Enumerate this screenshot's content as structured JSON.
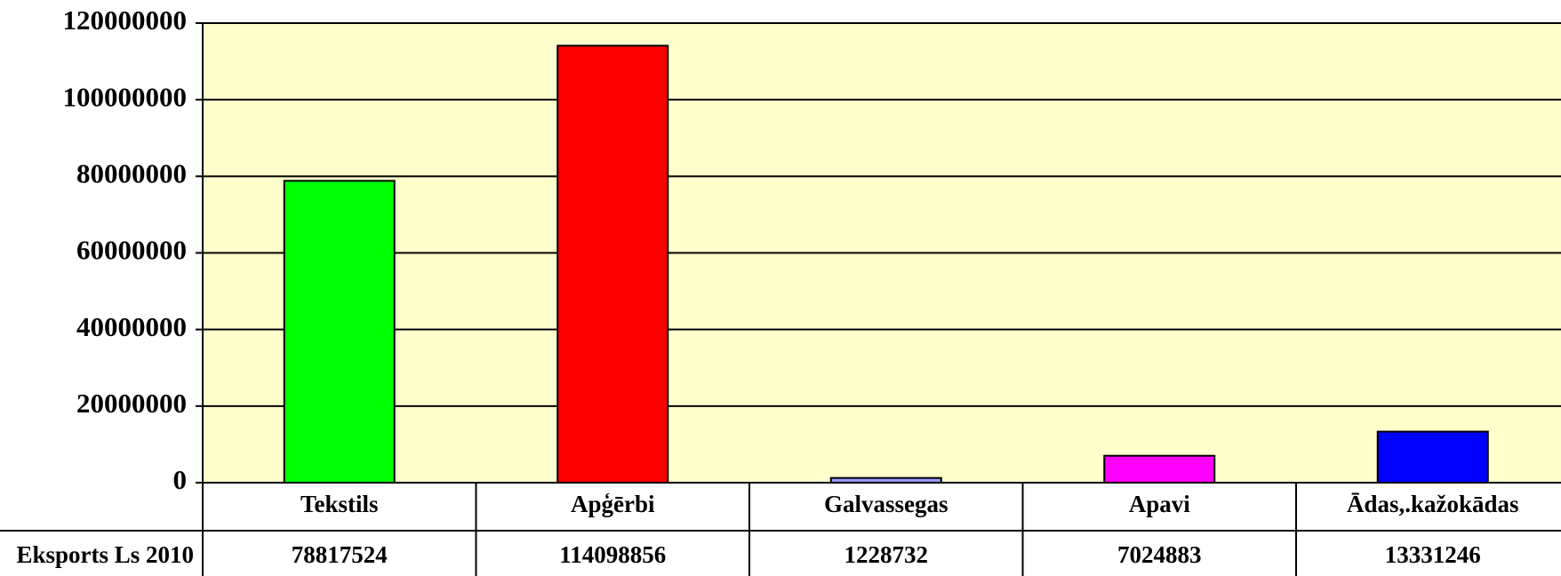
{
  "chart_data": {
    "type": "bar",
    "categories": [
      "Tekstils",
      "Apģērbi",
      "Galvassegas",
      "Apavi",
      "Ādas,.kažokādas"
    ],
    "series": [
      {
        "name": "Eksports Ls 2010",
        "colors": [
          "#00ff00",
          "#ff0000",
          "#9999ff",
          "#ff00ff",
          "#0000ff"
        ],
        "values": [
          78817524,
          114098856,
          1228732,
          7024883,
          13331246
        ]
      }
    ],
    "ylim": [
      0,
      120000000
    ],
    "yticks": [
      0,
      20000000,
      40000000,
      60000000,
      80000000,
      100000000,
      120000000
    ],
    "grid": true,
    "plot_background": "#ffffcc"
  }
}
